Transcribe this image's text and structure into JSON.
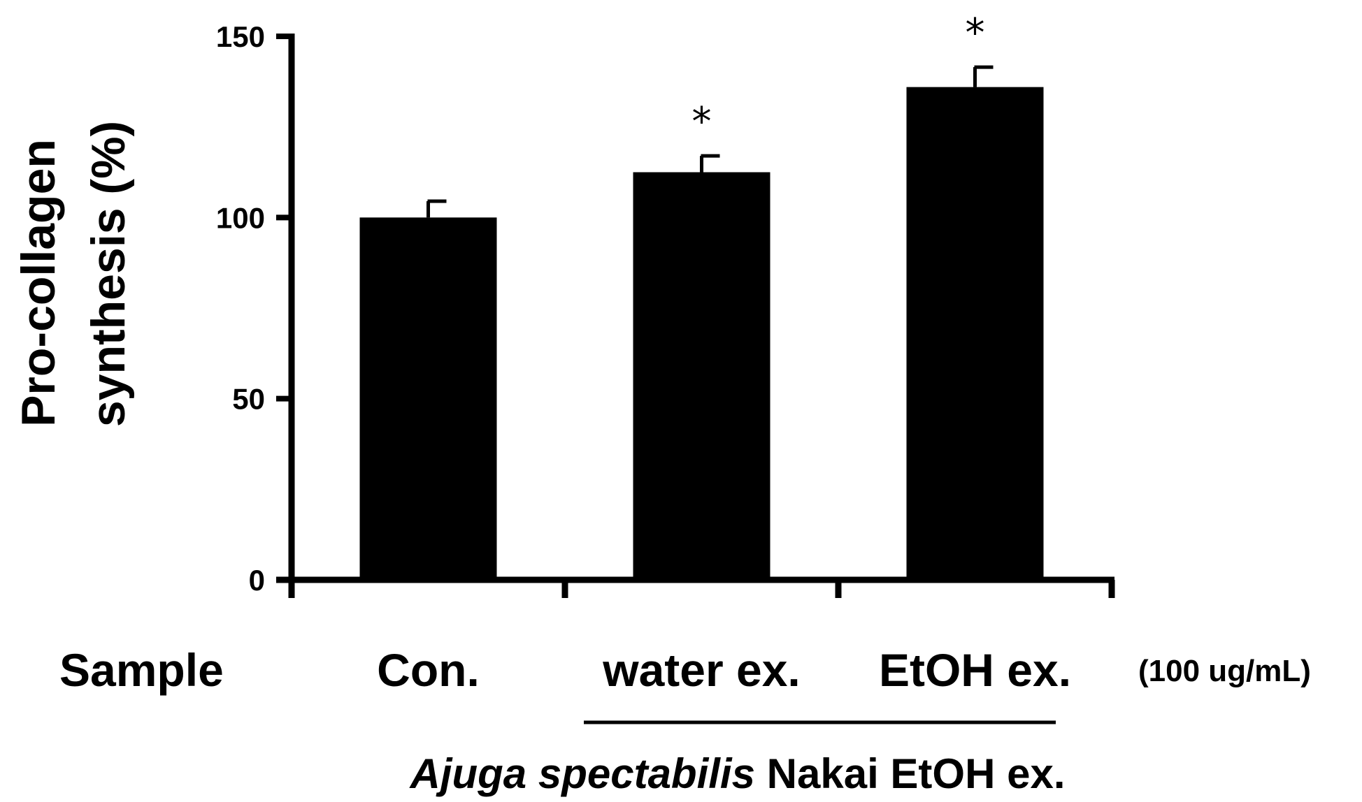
{
  "chart_data": {
    "type": "bar",
    "ylabel_line1": "Pro-collagen",
    "ylabel_line2": "synthesis (%)",
    "row_label": "Sample",
    "concentration_note": "(100 ug/mL)",
    "categories": [
      "Con.",
      "water ex.",
      "EtOH ex."
    ],
    "values": [
      100,
      112.5,
      136
    ],
    "errors": [
      4.5,
      4.5,
      5.5
    ],
    "significance": [
      "",
      "*",
      "*"
    ],
    "yticks": [
      0,
      50,
      100,
      150
    ],
    "ylim": [
      0,
      150
    ],
    "group_label_italic": "Ajuga spectabilis",
    "group_label_rest": " Nakai EtOH ex.",
    "bar_color": "#000000"
  }
}
